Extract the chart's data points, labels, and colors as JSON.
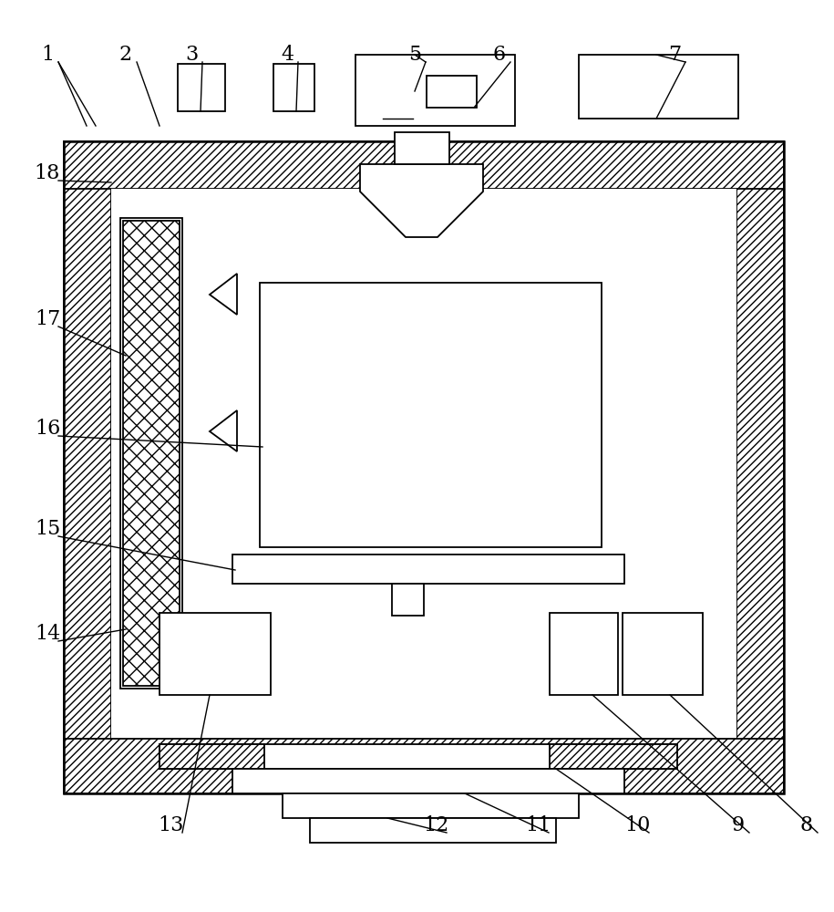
{
  "bg_color": "#ffffff",
  "line_color": "#000000",
  "figure_size": [
    9.15,
    10.0
  ],
  "dpi": 100
}
